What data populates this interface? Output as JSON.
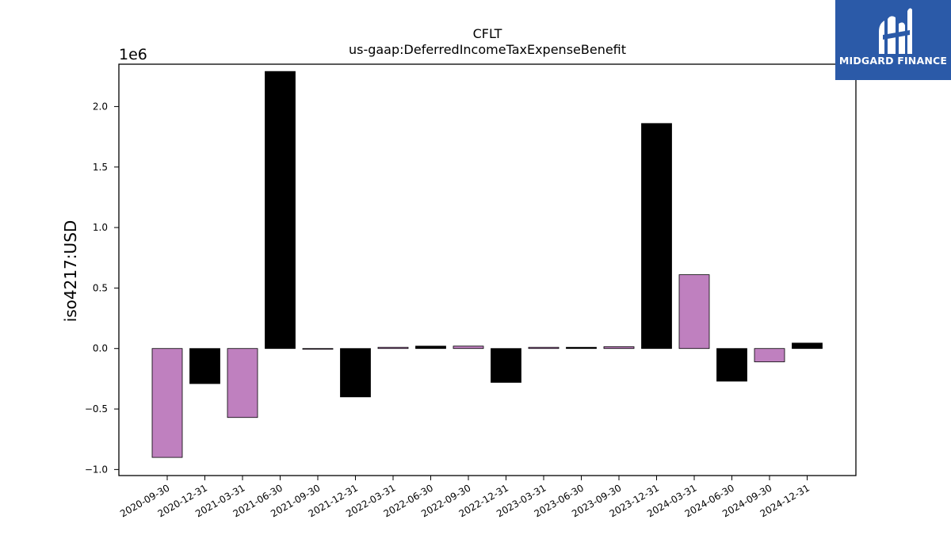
{
  "logo": {
    "text": "MIDGARD FINANCE"
  },
  "chart_data": {
    "type": "bar",
    "title": "CFLT",
    "subtitle": "us-gaap:DeferredIncomeTaxExpenseBenefit",
    "ylabel": "iso4217:USD",
    "xlabel": "",
    "y_scale_label": "1e6",
    "ylim": [
      -1.05,
      2.35
    ],
    "yticks": [
      -1.0,
      -0.5,
      0.0,
      0.5,
      1.0,
      1.5,
      2.0
    ],
    "ytick_labels": [
      "−1.0",
      "−0.5",
      "0.0",
      "0.5",
      "1.0",
      "1.5",
      "2.0"
    ],
    "grid": false,
    "colors": [
      "#bf80bf",
      "#000000"
    ],
    "categories": [
      "2020-09-30",
      "2020-12-31",
      "2021-03-31",
      "2021-06-30",
      "2021-09-30",
      "2021-12-31",
      "2022-03-31",
      "2022-06-30",
      "2022-09-30",
      "2022-12-31",
      "2023-03-31",
      "2023-06-30",
      "2023-09-30",
      "2023-12-31",
      "2024-03-31",
      "2024-06-30",
      "2024-09-30",
      "2024-12-31"
    ],
    "values": [
      -0.9,
      -0.29,
      -0.57,
      2.29,
      -0.005,
      -0.4,
      0.01,
      0.02,
      0.02,
      -0.28,
      0.01,
      0.01,
      0.015,
      1.86,
      0.61,
      -0.27,
      -0.11,
      0.045
    ]
  }
}
